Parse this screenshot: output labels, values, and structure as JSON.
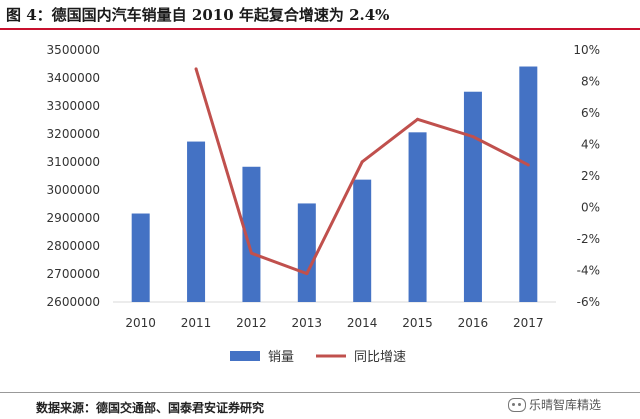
{
  "figure": {
    "title": "图 4：德国国内汽车销量自 2010 年起复合增速为 2.4%",
    "source": "数据来源：德国交通部、国泰君安证券研究",
    "watermark": "乐晴智库精选"
  },
  "colors": {
    "bar": "#4472c4",
    "line": "#c0504d",
    "title_rule": "#c8102e"
  },
  "chart_data": {
    "type": "bar",
    "categories": [
      "2010",
      "2011",
      "2012",
      "2013",
      "2014",
      "2015",
      "2016",
      "2017"
    ],
    "series": [
      {
        "name": "销量",
        "type": "bar",
        "axis": "left",
        "values": [
          2916000,
          3173000,
          3083000,
          2952000,
          3037000,
          3206000,
          3351000,
          3441000
        ]
      },
      {
        "name": "同比增速",
        "type": "line",
        "axis": "right",
        "values": [
          null,
          8.8,
          -2.9,
          -4.2,
          2.9,
          5.6,
          4.5,
          2.7
        ]
      }
    ],
    "y_left": {
      "min": 2600000,
      "max": 3500000,
      "step": 100000
    },
    "y_right": {
      "min": -6,
      "max": 10,
      "step": 2,
      "unit": "%"
    },
    "legend_position": "bottom",
    "grid": false
  }
}
